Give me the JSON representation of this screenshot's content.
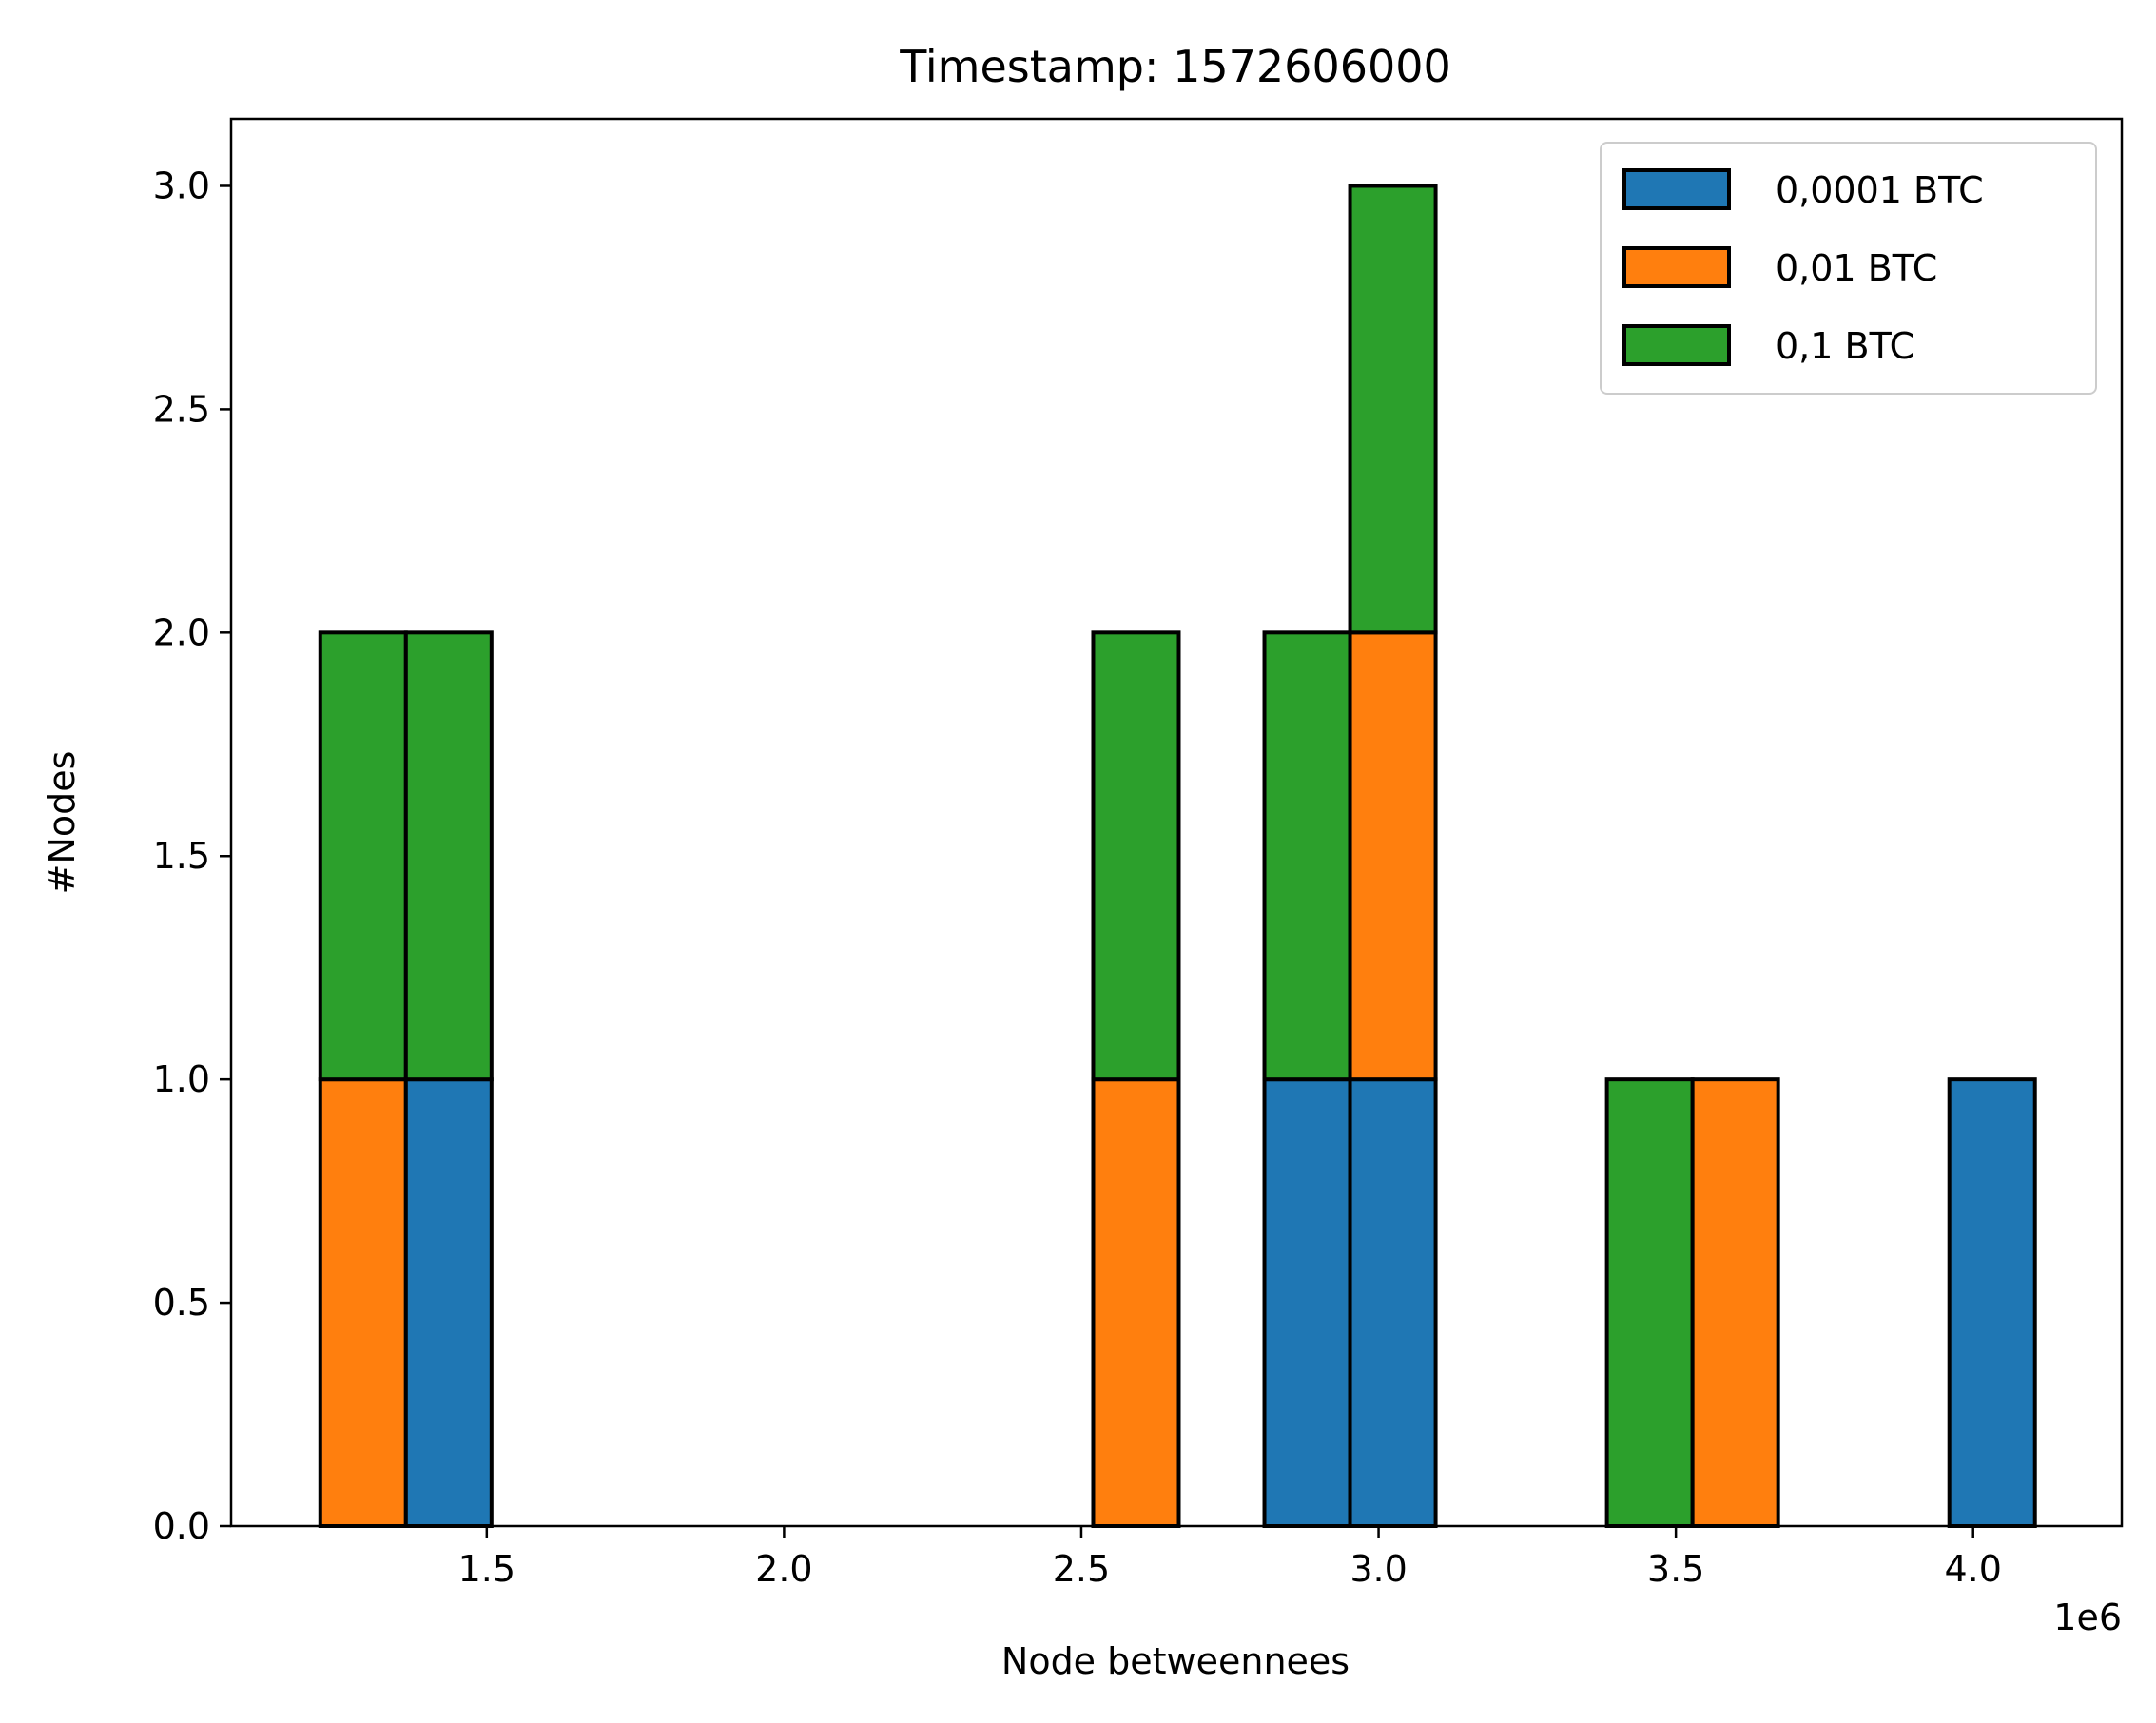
{
  "chart_data": {
    "type": "bar",
    "stacked": true,
    "title": "Timestamp: 1572606000",
    "xlabel": "Node betweennees",
    "ylabel": "#Nodes",
    "x_offset_label": "1e6",
    "xlim": [
      1.07,
      4.25
    ],
    "ylim": [
      0,
      3.15
    ],
    "xticks": [
      {
        "value": 1.5,
        "label": "1.5"
      },
      {
        "value": 2.0,
        "label": "2.0"
      },
      {
        "value": 2.5,
        "label": "2.5"
      },
      {
        "value": 3.0,
        "label": "3.0"
      },
      {
        "value": 3.5,
        "label": "3.5"
      },
      {
        "value": 4.0,
        "label": "4.0"
      }
    ],
    "yticks": [
      {
        "value": 0.0,
        "label": "0.0"
      },
      {
        "value": 0.5,
        "label": "0.5"
      },
      {
        "value": 1.0,
        "label": "1.0"
      },
      {
        "value": 1.5,
        "label": "1.5"
      },
      {
        "value": 2.0,
        "label": "2.0"
      },
      {
        "value": 2.5,
        "label": "2.5"
      },
      {
        "value": 3.0,
        "label": "3.0"
      }
    ],
    "grid": false,
    "legend_position": "top-right",
    "bin_width": 0.144,
    "bins": [
      1.22,
      1.364,
      2.52,
      2.808,
      2.952,
      3.384,
      3.528,
      3.96
    ],
    "series": [
      {
        "name": "0,0001 BTC",
        "color": "#1f77b4",
        "values": [
          0,
          1,
          0,
          1,
          1,
          0,
          0,
          1
        ]
      },
      {
        "name": "0,01 BTC",
        "color": "#ff7f0e",
        "values": [
          1,
          0,
          1,
          0,
          1,
          0,
          1,
          0
        ]
      },
      {
        "name": "0,1 BTC",
        "color": "#2ca02c",
        "values": [
          1,
          1,
          1,
          1,
          1,
          1,
          0,
          0
        ]
      }
    ]
  }
}
